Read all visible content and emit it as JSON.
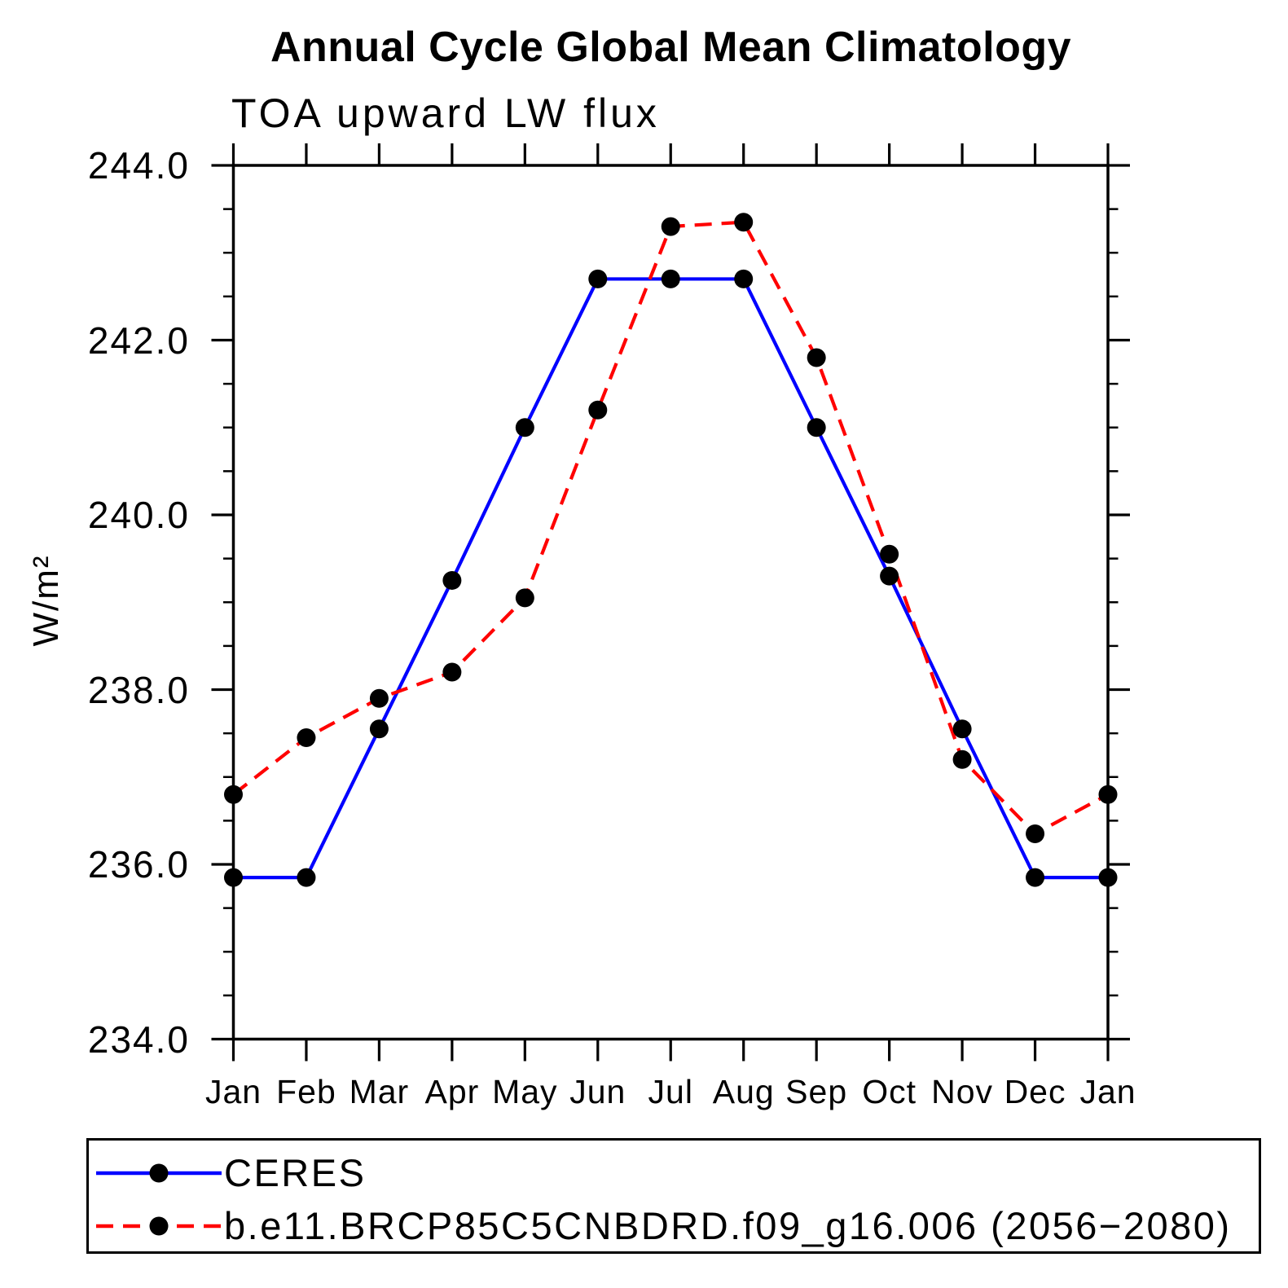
{
  "chart_data": {
    "type": "line",
    "title": "Annual Cycle Global Mean Climatology",
    "subtitle": "TOA upward LW flux",
    "ylabel": "W/m²",
    "xlabel": "",
    "ylim": [
      234.0,
      244.0
    ],
    "ytick_values": [
      244,
      242,
      240,
      238,
      236,
      234
    ],
    "ytick_labels": [
      "244.0",
      "242.0",
      "240.0",
      "238.0",
      "236.0",
      "234.0"
    ],
    "minor_tick_step": 0.5,
    "grid": "off",
    "legend_position": "bottom-left",
    "categories": [
      "Jan",
      "Feb",
      "Mar",
      "Apr",
      "May",
      "Jun",
      "Jul",
      "Aug",
      "Sep",
      "Oct",
      "Nov",
      "Dec",
      "Jan"
    ],
    "series": [
      {
        "name": "CERES",
        "color": "#0000ff",
        "line_style": "solid",
        "marker": "circle",
        "marker_color": "#000000",
        "values": [
          235.85,
          235.85,
          237.55,
          239.25,
          241.0,
          242.7,
          242.7,
          242.7,
          241.0,
          239.3,
          237.55,
          235.85,
          235.85
        ]
      },
      {
        "name": "b.e11.BRCP85C5CNBDRD.f09_g16.006 (2056−2080)",
        "color": "#ff0000",
        "line_style": "dashed",
        "marker": "circle",
        "marker_color": "#000000",
        "values": [
          236.8,
          237.45,
          237.9,
          238.2,
          239.05,
          241.2,
          243.3,
          243.35,
          241.8,
          239.55,
          237.2,
          236.35,
          236.8
        ]
      }
    ]
  }
}
